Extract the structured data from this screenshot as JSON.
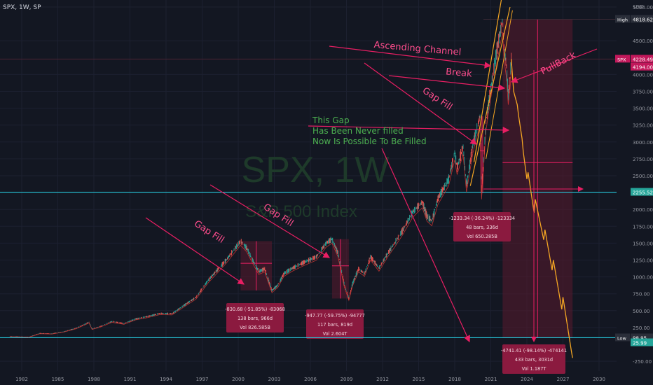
{
  "header": {
    "symbol_line": "SPX, 1W, SP"
  },
  "watermark": {
    "title": "SPX, 1W",
    "subtitle": "S&P 500 Index"
  },
  "colors": {
    "background": "#131722",
    "annotation_pink": "#e91e63",
    "annotation_pink_text": "#ff4d8d",
    "orange_projection": "#f5a623",
    "cyan_line": "#26c6da",
    "green_text": "#4caf50",
    "candle_up": "#26a69a",
    "candle_down": "#ef5350",
    "box_fill": "#5a1a2e",
    "price_label_red": "#c2185b"
  },
  "chart_data": {
    "type": "line",
    "xlabel": "",
    "ylabel": "",
    "x_ticks": [
      "1982",
      "1985",
      "1988",
      "1991",
      "1994",
      "1997",
      "2000",
      "2003",
      "2006",
      "2009",
      "2012",
      "2015",
      "2018",
      "2021",
      "2024",
      "2027",
      "2030"
    ],
    "y_axis_unit": "USD",
    "y_ticks": [
      "5000.00",
      "4500.00",
      "4000.00",
      "3750.00",
      "3500.00",
      "3250.00",
      "3000.00",
      "2750.00",
      "2500.00",
      "2000.00",
      "1750.00",
      "1500.00",
      "1250.00",
      "1000.00",
      "750.00",
      "500.00",
      "250.00",
      "-250.00"
    ],
    "price_labels": [
      {
        "tag": "High",
        "value": "4818.62"
      },
      {
        "tag": "SPX",
        "value": "4228.49"
      },
      {
        "tag": "",
        "value": "4194.00"
      },
      {
        "tag": "",
        "value": "2255.52"
      },
      {
        "tag": "Low",
        "value": "98.95"
      },
      {
        "tag": "",
        "value": "25.99"
      }
    ],
    "series": [
      {
        "values": [
          [
            1981.0,
            120
          ],
          [
            1982.6,
            110
          ],
          [
            1983.5,
            165
          ],
          [
            1984.5,
            160
          ],
          [
            1985.5,
            190
          ],
          [
            1986.5,
            240
          ],
          [
            1987.6,
            330
          ],
          [
            1987.85,
            230
          ],
          [
            1988.5,
            265
          ],
          [
            1989.5,
            340
          ],
          [
            1990.5,
            310
          ],
          [
            1991.5,
            380
          ],
          [
            1992.5,
            415
          ],
          [
            1993.5,
            460
          ],
          [
            1994.5,
            455
          ],
          [
            1995.5,
            580
          ],
          [
            1996.5,
            700
          ],
          [
            1997.5,
            950
          ],
          [
            1998.5,
            1150
          ],
          [
            1999.0,
            1250
          ],
          [
            1999.5,
            1370
          ],
          [
            2000.2,
            1530
          ],
          [
            2000.7,
            1430
          ],
          [
            2001.2,
            1250
          ],
          [
            2001.7,
            1080
          ],
          [
            2002.2,
            1120
          ],
          [
            2002.8,
            800
          ],
          [
            2003.3,
            880
          ],
          [
            2003.8,
            1050
          ],
          [
            2004.5,
            1130
          ],
          [
            2005.5,
            1220
          ],
          [
            2006.5,
            1300
          ],
          [
            2007.3,
            1500
          ],
          [
            2007.8,
            1560
          ],
          [
            2008.3,
            1350
          ],
          [
            2008.8,
            900
          ],
          [
            2009.2,
            680
          ],
          [
            2009.5,
            900
          ],
          [
            2010.0,
            1120
          ],
          [
            2010.5,
            1050
          ],
          [
            2011.0,
            1300
          ],
          [
            2011.7,
            1130
          ],
          [
            2012.5,
            1370
          ],
          [
            2013.0,
            1500
          ],
          [
            2013.7,
            1700
          ],
          [
            2014.5,
            1960
          ],
          [
            2015.3,
            2110
          ],
          [
            2015.7,
            1900
          ],
          [
            2016.1,
            1830
          ],
          [
            2016.6,
            2160
          ],
          [
            2017.5,
            2450
          ],
          [
            2018.0,
            2850
          ],
          [
            2018.2,
            2620
          ],
          [
            2018.7,
            2930
          ],
          [
            2018.98,
            2350
          ],
          [
            2019.5,
            2950
          ],
          [
            2020.1,
            3380
          ],
          [
            2020.23,
            2240
          ],
          [
            2020.6,
            3300
          ],
          [
            2021.0,
            3800
          ],
          [
            2021.5,
            4350
          ],
          [
            2021.98,
            4818
          ],
          [
            2022.1,
            4400
          ],
          [
            2022.3,
            4120
          ],
          [
            2022.45,
            3700
          ],
          [
            2022.6,
            3950
          ],
          [
            2022.7,
            4228
          ]
        ]
      },
      {
        "values": [
          [
            2022.7,
            4228
          ],
          [
            2022.9,
            3750
          ],
          [
            2023.2,
            3550
          ],
          [
            2023.3,
            3400
          ],
          [
            2023.6,
            3050
          ],
          [
            2023.7,
            2850
          ],
          [
            2024.0,
            2450
          ],
          [
            2024.1,
            2550
          ],
          [
            2024.6,
            1950
          ],
          [
            2024.7,
            2150
          ],
          [
            2025.4,
            1550
          ],
          [
            2025.5,
            1700
          ],
          [
            2026.1,
            1100
          ],
          [
            2026.2,
            1250
          ],
          [
            2026.9,
            520
          ],
          [
            2027.0,
            700
          ],
          [
            2027.7,
            -100
          ],
          [
            2027.8,
            -200
          ]
        ]
      }
    ],
    "horizontal_levels": [
      2255.52,
      98.95,
      4818.62,
      4228.49
    ],
    "drawdowns": [
      {
        "line1": "-830.68 (-51.85%) -83068",
        "line2": "138 bars, 966d",
        "line3": "Vol 826.585B"
      },
      {
        "line1": "-947.77 (-59.75%) -94777",
        "line2": "117 bars, 819d",
        "line3": "Vol 2.604T"
      },
      {
        "line1": "-1233.34 (-36.24%) -123334",
        "line2": "48 bars, 336d",
        "line3": "Vol 650.285B"
      },
      {
        "line1": "-4741.41 (-98.14%) -474141",
        "line2": "433 bars, 3031d",
        "line3": "Vol 1.187T"
      }
    ],
    "annotations": {
      "gap_fill_1": "Gap Fill",
      "gap_fill_2": "Gap Fill",
      "gap_fill_3": "Gap Fill",
      "ascending_channel": "Ascending Channel",
      "break": "Break",
      "pullback": "PullBack",
      "gap_text_1": "This Gap",
      "gap_text_2": "Has Been Never filled",
      "gap_text_3": "Now Is Possible To Be Filled"
    }
  }
}
